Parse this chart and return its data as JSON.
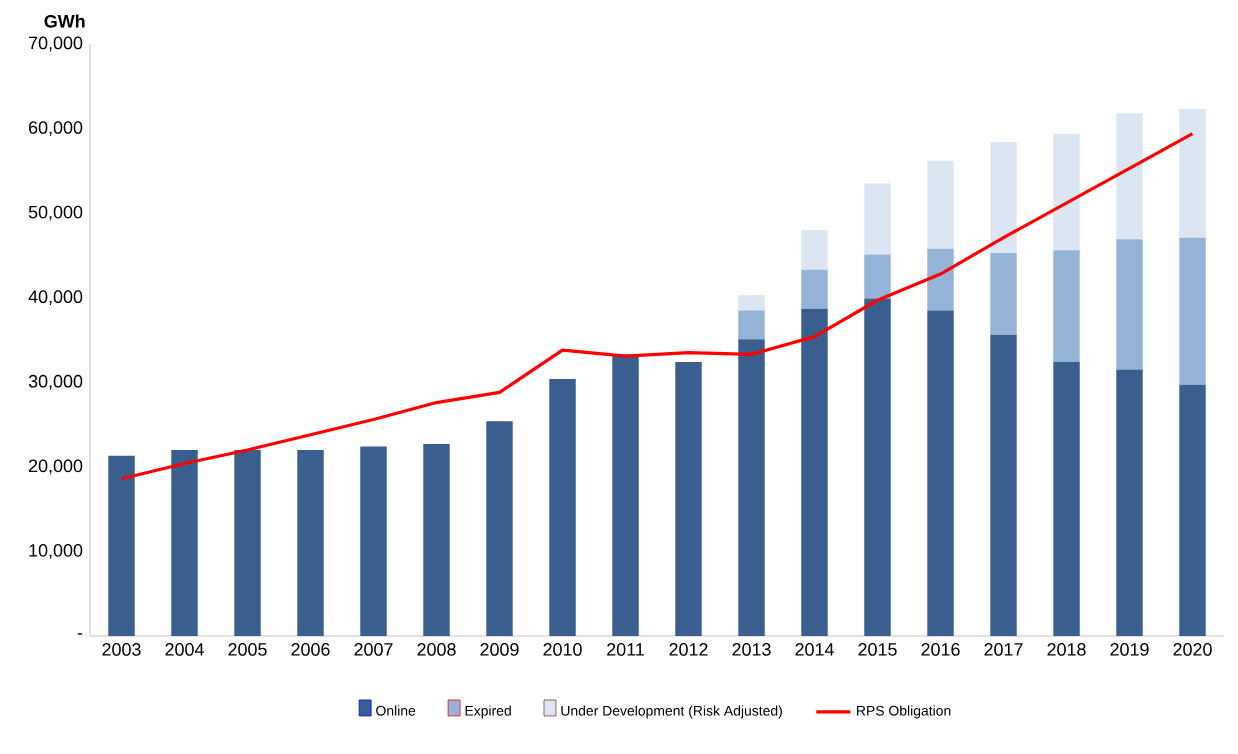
{
  "chart_data": {
    "type": "bar",
    "stacked": true,
    "ylabel": "GWh",
    "categories": [
      "2003",
      "2004",
      "2005",
      "2006",
      "2007",
      "2008",
      "2009",
      "2010",
      "2011",
      "2012",
      "2013",
      "2014",
      "2015",
      "2016",
      "2017",
      "2018",
      "2019",
      "2020"
    ],
    "series": [
      {
        "name": "Online",
        "color": "#3a5f8f",
        "values": [
          21300,
          22000,
          22000,
          22000,
          22400,
          22700,
          25400,
          30400,
          33300,
          32400,
          35100,
          38700,
          39900,
          38500,
          35600,
          32400,
          31500,
          29700
        ]
      },
      {
        "name": "Expired",
        "color": "#95b3d7",
        "values": [
          null,
          null,
          null,
          null,
          null,
          null,
          null,
          null,
          null,
          null,
          3400,
          4600,
          5200,
          7300,
          9700,
          13200,
          15400,
          17400
        ]
      },
      {
        "name": "Under Development (Risk Adjusted)",
        "color": "#dce6f2",
        "values": [
          null,
          null,
          null,
          null,
          null,
          null,
          null,
          null,
          null,
          null,
          1800,
          4700,
          8400,
          10400,
          13100,
          13800,
          14900,
          15200
        ]
      },
      {
        "name": "RPS Obligation",
        "type": "line",
        "color": "#ff0000",
        "values": [
          18600,
          20400,
          22000,
          23800,
          25600,
          27600,
          28800,
          33800,
          33100,
          33500,
          33300,
          35400,
          39700,
          42800,
          47100,
          51200,
          55300,
          59400
        ]
      }
    ],
    "ylim": [
      0,
      70000
    ],
    "yticks": [
      {
        "value": 0,
        "label": "-"
      },
      {
        "value": 10000,
        "label": "10,000"
      },
      {
        "value": 20000,
        "label": "20,000"
      },
      {
        "value": 30000,
        "label": "30,000"
      },
      {
        "value": 40000,
        "label": "40,000"
      },
      {
        "value": 50000,
        "label": "50,000"
      },
      {
        "value": 60000,
        "label": "60,000"
      },
      {
        "value": 70000,
        "label": "70,000"
      }
    ],
    "grid": false,
    "legend": "bottom"
  }
}
